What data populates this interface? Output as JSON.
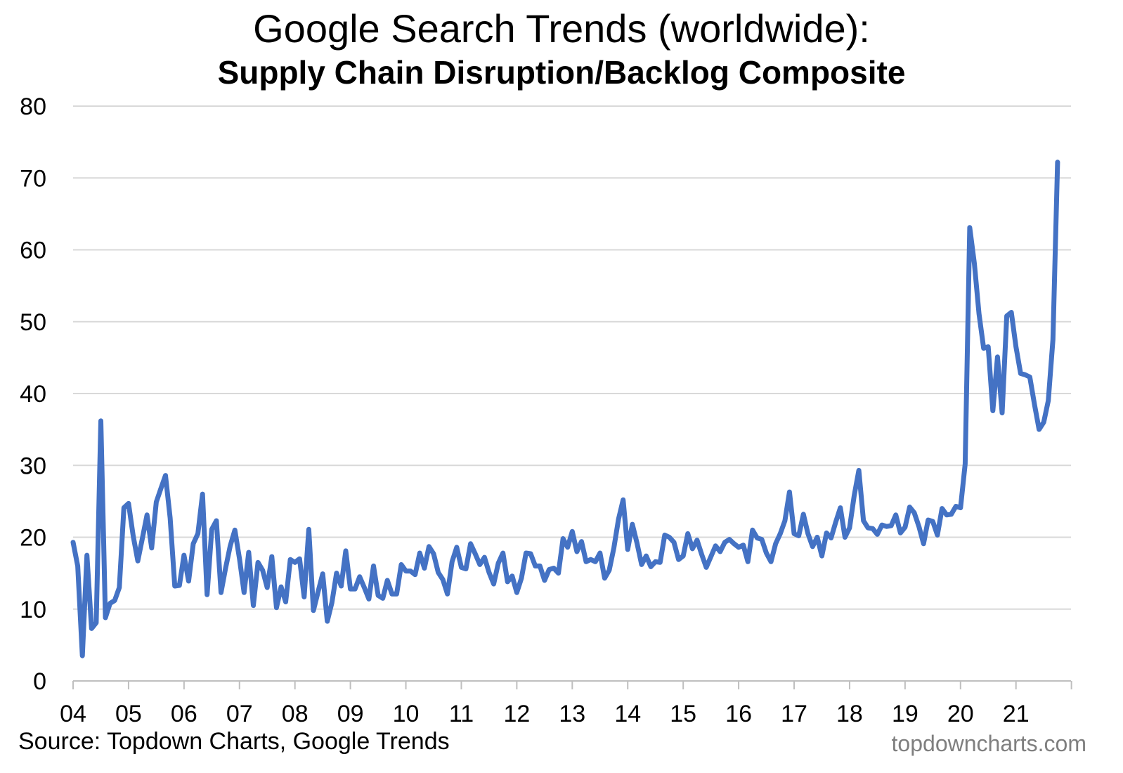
{
  "chart_data": {
    "type": "line",
    "title": "Google Search Trends (worldwide):",
    "subtitle": "Supply Chain Disruption/Backlog Composite",
    "xlabel": "",
    "ylabel": "",
    "ylim": [
      0,
      80
    ],
    "yticks": [
      0,
      10,
      20,
      30,
      40,
      50,
      60,
      70,
      80
    ],
    "xlim": [
      2004,
      2021.992
    ],
    "xticks": [
      "04",
      "05",
      "06",
      "07",
      "08",
      "09",
      "10",
      "11",
      "12",
      "13",
      "14",
      "15",
      "16",
      "17",
      "18",
      "19",
      "20",
      "21"
    ],
    "grid": true,
    "legend": "none",
    "series": [
      {
        "color": "#4472c4",
        "x_start": "2004-01",
        "frequency": "monthly",
        "values": [
          19.3,
          16,
          3.5,
          17.5,
          7.3,
          8.1,
          36.2,
          8.8,
          10.8,
          11.2,
          13,
          24.1,
          24.7,
          20.2,
          16.7,
          19.9,
          23.1,
          18.5,
          24.9,
          26.8,
          28.6,
          22.7,
          13.2,
          13.3,
          17.5,
          13.9,
          19.1,
          20.5,
          26,
          12,
          21.1,
          22.3,
          12.3,
          15.7,
          18.8,
          21,
          17,
          12.3,
          17.9,
          10.5,
          16.5,
          15.4,
          13,
          17.3,
          10.2,
          13.1,
          11,
          16.9,
          16.5,
          17,
          11.7,
          21.1,
          9.8,
          12.4,
          14.9,
          8.3,
          10.9,
          15,
          13.2,
          18.1,
          12.8,
          12.8,
          14.5,
          13,
          11.4,
          16,
          11.9,
          11.5,
          14,
          12.1,
          12.1,
          16.2,
          15.3,
          15.3,
          14.8,
          17.8,
          15.7,
          18.7,
          17.7,
          15.1,
          14.1,
          12.1,
          16.6,
          18.6,
          15.8,
          15.6,
          19.1,
          17.7,
          16.2,
          17.2,
          15.1,
          13.5,
          16.4,
          17.8,
          13.8,
          14.6,
          12.3,
          14.3,
          17.8,
          17.7,
          16,
          16,
          14,
          15.5,
          15.7,
          15,
          19.8,
          18.6,
          20.8,
          18,
          19.4,
          16.6,
          16.9,
          16.6,
          17.8,
          14.3,
          15.4,
          18.5,
          22.5,
          25.2,
          18.3,
          21.8,
          19.2,
          16.2,
          17.4,
          15.9,
          16.6,
          16.5,
          20.3,
          20,
          19.3,
          16.9,
          17.4,
          20.5,
          18.4,
          19.6,
          17.6,
          15.8,
          17.3,
          18.8,
          18,
          19.3,
          19.7,
          19.1,
          18.6,
          18.9,
          16.6,
          21,
          19.9,
          19.7,
          17.8,
          16.6,
          19.1,
          20.5,
          22.3,
          26.3,
          20.5,
          20.2,
          23.2,
          20.5,
          18.7,
          20,
          17.4,
          20.6,
          19.9,
          22.1,
          24.1,
          20,
          21.3,
          25.8,
          29.3,
          22.3,
          21.3,
          21.2,
          20.4,
          21.7,
          21.5,
          21.6,
          23.1,
          20.6,
          21.4,
          24.2,
          23.4,
          21.5,
          19.1,
          22.4,
          22.2,
          20.3,
          24,
          23.1,
          23.2,
          24.3,
          24.1,
          30.2,
          63.1,
          58.1,
          51.1,
          46.3,
          46.5,
          37.6,
          45.1,
          37.3,
          50.8,
          51.3,
          46.5,
          42.8,
          42.6,
          42.3,
          38.5,
          35,
          36,
          39,
          47.5,
          72.2
        ]
      }
    ],
    "source": "Source: Topdown Charts, Google Trends",
    "credit": "topdowncharts.com"
  }
}
